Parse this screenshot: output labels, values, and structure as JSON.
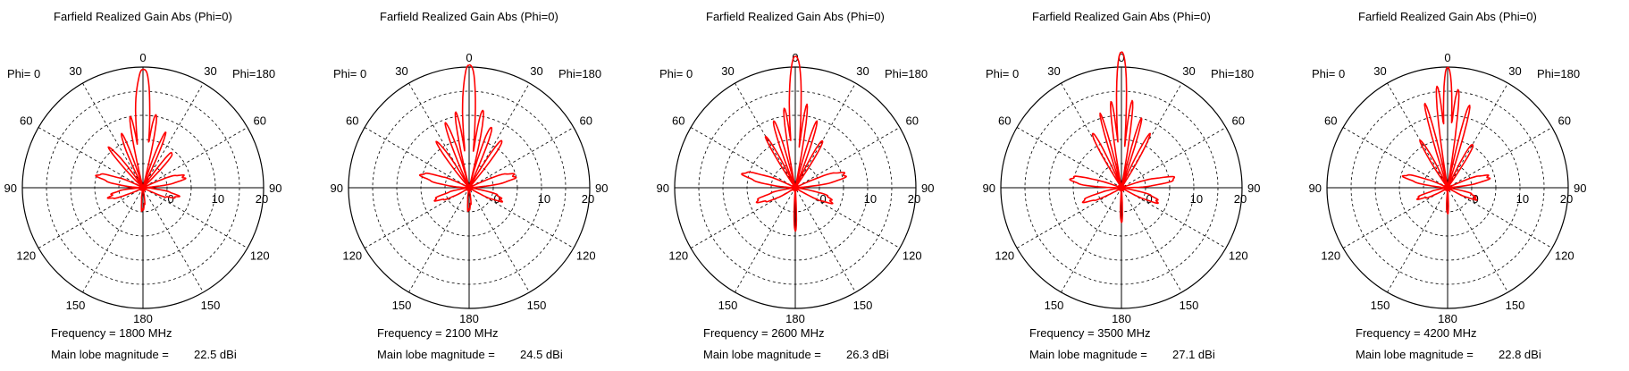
{
  "chart_data": [
    {
      "type": "polar",
      "title": "Farfield Realized Gain Abs (Phi=0)",
      "phi_left_label": "Phi=  0",
      "phi_right_label": "Phi=180",
      "angle_labels": [
        "0",
        "30",
        "60",
        "90",
        "120",
        "150",
        "180"
      ],
      "radial_ticks": [
        "0",
        "10",
        "20"
      ],
      "r_range": [
        -5,
        22.5
      ],
      "series_color": "#ff0000",
      "frequency_text": "Frequency = 1800 MHz",
      "main_lobe_label": "Main lobe magnitude =",
      "main_lobe_value": "22.5 dBi",
      "lobes": [
        {
          "theta": 0,
          "r": 22.0,
          "w": 7
        },
        {
          "theta": 10,
          "r": 12.0,
          "w": 4
        },
        {
          "theta": -10,
          "r": 11.5,
          "w": 4
        },
        {
          "theta": 22,
          "r": 8.0,
          "w": 5
        },
        {
          "theta": -22,
          "r": 8.5,
          "w": 5
        },
        {
          "theta": 40,
          "r": 6.0,
          "w": 7
        },
        {
          "theta": -40,
          "r": 6.5,
          "w": 7
        },
        {
          "theta": 75,
          "r": 5.0,
          "w": 15
        },
        {
          "theta": -75,
          "r": 5.5,
          "w": 15
        },
        {
          "theta": 105,
          "r": 3.0,
          "w": 18
        },
        {
          "theta": -105,
          "r": 3.0,
          "w": 18
        },
        {
          "theta": 180,
          "r": 0.0,
          "w": 20
        }
      ]
    },
    {
      "type": "polar",
      "title": "Farfield Realized Gain Abs (Phi=0)",
      "phi_left_label": "Phi=  0",
      "phi_right_label": "Phi=180",
      "angle_labels": [
        "0",
        "30",
        "60",
        "90",
        "120",
        "150",
        "180"
      ],
      "radial_ticks": [
        "0",
        "10",
        "20"
      ],
      "r_range": [
        -5,
        22.5
      ],
      "series_color": "#ff0000",
      "frequency_text": "Frequency = 2100 MHz",
      "main_lobe_label": "Main lobe magnitude =",
      "main_lobe_value": "24.5 dBi",
      "lobes": [
        {
          "theta": 0,
          "r": 23.0,
          "w": 6
        },
        {
          "theta": 10,
          "r": 13.0,
          "w": 4
        },
        {
          "theta": -10,
          "r": 12.5,
          "w": 4
        },
        {
          "theta": 20,
          "r": 10.0,
          "w": 5
        },
        {
          "theta": -20,
          "r": 10.5,
          "w": 5
        },
        {
          "theta": 35,
          "r": 8.0,
          "w": 6
        },
        {
          "theta": -35,
          "r": 8.0,
          "w": 6
        },
        {
          "theta": 75,
          "r": 6.0,
          "w": 15
        },
        {
          "theta": -75,
          "r": 6.0,
          "w": 15
        },
        {
          "theta": 110,
          "r": 3.0,
          "w": 18
        },
        {
          "theta": -110,
          "r": 3.0,
          "w": 18
        },
        {
          "theta": 180,
          "r": 0.0,
          "w": 20
        }
      ]
    },
    {
      "type": "polar",
      "title": "Farfield Realized Gain Abs (Phi=0)",
      "phi_left_label": "Phi=  0",
      "phi_right_label": "Phi=180",
      "angle_labels": [
        "0",
        "30",
        "60",
        "90",
        "120",
        "150",
        "180"
      ],
      "radial_ticks": [
        "0",
        "10",
        "20"
      ],
      "r_range": [
        -5,
        22.5
      ],
      "series_color": "#ff0000",
      "frequency_text": "Frequency = 2600 MHz",
      "main_lobe_label": "Main lobe magnitude =",
      "main_lobe_value": "26.3 dBi",
      "lobes": [
        {
          "theta": 0,
          "r": 25.0,
          "w": 5
        },
        {
          "theta": 8,
          "r": 14.0,
          "w": 3
        },
        {
          "theta": -8,
          "r": 13.5,
          "w": 3
        },
        {
          "theta": 18,
          "r": 11.0,
          "w": 4
        },
        {
          "theta": -18,
          "r": 11.0,
          "w": 4
        },
        {
          "theta": 30,
          "r": 8.0,
          "w": 5
        },
        {
          "theta": -30,
          "r": 8.0,
          "w": 5
        },
        {
          "theta": 75,
          "r": 7.0,
          "w": 14
        },
        {
          "theta": -75,
          "r": 7.0,
          "w": 14
        },
        {
          "theta": 110,
          "r": 4.0,
          "w": 18
        },
        {
          "theta": -110,
          "r": 4.0,
          "w": 18
        },
        {
          "theta": 180,
          "r": 5.0,
          "w": 5
        }
      ]
    },
    {
      "type": "polar",
      "title": "Farfield Realized Gain Abs (Phi=0)",
      "phi_left_label": "Phi=  0",
      "phi_right_label": "Phi=180",
      "angle_labels": [
        "0",
        "30",
        "60",
        "90",
        "120",
        "150",
        "180"
      ],
      "radial_ticks": [
        "0",
        "10",
        "20"
      ],
      "r_range": [
        -5,
        22.5
      ],
      "series_color": "#ff0000",
      "frequency_text": "Frequency = 3500 MHz",
      "main_lobe_label": "Main lobe magnitude =",
      "main_lobe_value": "27.1 dBi",
      "lobes": [
        {
          "theta": 0,
          "r": 26.0,
          "w": 4
        },
        {
          "theta": 7,
          "r": 15.0,
          "w": 3
        },
        {
          "theta": -7,
          "r": 14.5,
          "w": 3
        },
        {
          "theta": 16,
          "r": 12.0,
          "w": 3
        },
        {
          "theta": -16,
          "r": 12.0,
          "w": 3
        },
        {
          "theta": 28,
          "r": 9.0,
          "w": 5
        },
        {
          "theta": -28,
          "r": 9.0,
          "w": 5
        },
        {
          "theta": 80,
          "r": 7.0,
          "w": 12
        },
        {
          "theta": -80,
          "r": 7.0,
          "w": 12
        },
        {
          "theta": 110,
          "r": 4.0,
          "w": 15
        },
        {
          "theta": -110,
          "r": 4.0,
          "w": 15
        },
        {
          "theta": 180,
          "r": 3.0,
          "w": 6
        }
      ]
    },
    {
      "type": "polar",
      "title": "Farfield Realized Gain Abs (Phi=0)",
      "phi_left_label": "Phi=  0",
      "phi_right_label": "Phi=180",
      "angle_labels": [
        "0",
        "30",
        "60",
        "90",
        "120",
        "150",
        "180"
      ],
      "radial_ticks": [
        "0",
        "10",
        "20"
      ],
      "r_range": [
        -5,
        22.5
      ],
      "series_color": "#ff0000",
      "frequency_text": "Frequency = 4200 MHz",
      "main_lobe_label": "Main lobe magnitude =",
      "main_lobe_value": "22.8 dBi",
      "lobes": [
        {
          "theta": 0,
          "r": 22.5,
          "w": 4
        },
        {
          "theta": 6,
          "r": 18.0,
          "w": 3
        },
        {
          "theta": -6,
          "r": 17.5,
          "w": 3
        },
        {
          "theta": 15,
          "r": 15.0,
          "w": 3
        },
        {
          "theta": -15,
          "r": 14.5,
          "w": 3
        },
        {
          "theta": 30,
          "r": 7.0,
          "w": 6
        },
        {
          "theta": -30,
          "r": 7.0,
          "w": 6
        },
        {
          "theta": 75,
          "r": 5.0,
          "w": 14
        },
        {
          "theta": -75,
          "r": 5.0,
          "w": 14
        },
        {
          "theta": 110,
          "r": 2.0,
          "w": 18
        },
        {
          "theta": -110,
          "r": 2.0,
          "w": 18
        },
        {
          "theta": 180,
          "r": 1.0,
          "w": 8
        }
      ]
    }
  ]
}
